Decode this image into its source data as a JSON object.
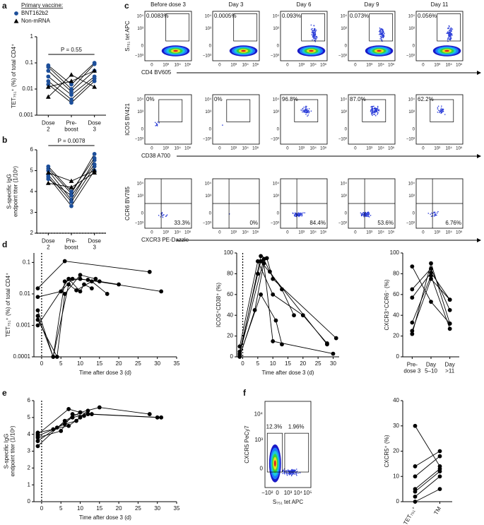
{
  "panels": [
    "a",
    "b",
    "c",
    "d",
    "e",
    "f"
  ],
  "legend": {
    "title": "Primary vaccine:",
    "groups": [
      {
        "name": "BNT162b2",
        "color": "#1d4f9a",
        "marker": "circle"
      },
      {
        "name": "Non-mRNA",
        "color": "#000000",
        "marker": "triangle"
      }
    ]
  },
  "flow_c": {
    "columns": [
      "Before dose 3",
      "Day 3",
      "Day 6",
      "Day 9",
      "Day 11"
    ],
    "rows": [
      {
        "ylabel": "S₇₅₁ tet APC",
        "xlabel": "CD4 BV605",
        "gates": [
          "0.0083%",
          "0.0005%",
          "0.093%",
          "0.073%",
          "0.056%"
        ]
      },
      {
        "ylabel": "ICOS BV421",
        "xlabel": "CD38 A700",
        "gates": [
          "0%",
          "0%",
          "96.8%",
          "87.0%",
          "62.2%"
        ]
      },
      {
        "ylabel": "CCR6 BV785",
        "xlabel": "CXCR3 PE-Dazzle",
        "gates": [
          "33.3%",
          "0%",
          "84.4%",
          "53.6%",
          "6.76%"
        ]
      }
    ],
    "yticks": [
      "10⁴",
      "10³",
      "0",
      "−10³"
    ],
    "xticks": [
      "0",
      "10³",
      "10⁴",
      "10⁵"
    ]
  },
  "flow_f": {
    "ylabel": "CXCR5 PeCy7",
    "xlabel": "S₇₅₁ tet APC",
    "gates": [
      "12.3%",
      "1.96%"
    ],
    "yticks": [
      "10⁴",
      "10³",
      "0"
    ],
    "xticks": [
      "−10²",
      "0",
      "10³",
      "10⁴",
      "10⁵"
    ]
  },
  "chart_data": [
    {
      "type": "line",
      "ylabel": "TET₇₅₁⁺ (%) of total CD4⁺",
      "log": true,
      "categories": [
        "Dose\n2",
        "Pre-\nboost",
        "Dose\n3"
      ],
      "ylim": [
        0.001,
        1
      ],
      "yticks": [
        0.001,
        0.01,
        0.1,
        1
      ],
      "annotation": "P = 0.55",
      "series": [
        {
          "group": 0,
          "values": [
            0.08,
            0.015,
            0.1
          ]
        },
        {
          "group": 0,
          "values": [
            0.07,
            0.01,
            0.09
          ]
        },
        {
          "group": 0,
          "values": [
            0.05,
            0.008,
            0.05
          ]
        },
        {
          "group": 0,
          "values": [
            0.03,
            0.006,
            0.03
          ]
        },
        {
          "group": 0,
          "values": [
            0.02,
            0.004,
            0.025
          ]
        },
        {
          "group": 0,
          "values": [
            0.015,
            0.003,
            0.02
          ]
        },
        {
          "group": 1,
          "values": [
            0.005,
            0.035,
            0.012
          ]
        },
        {
          "group": 1,
          "values": [
            0.012,
            0.02,
            0.05
          ]
        }
      ]
    },
    {
      "type": "line",
      "ylabel": "S-specific IgG\nendpoint titer (1/10ˣ)",
      "log": false,
      "categories": [
        "Dose\n2",
        "Pre-\nboost",
        "Dose\n3"
      ],
      "ylim": [
        2,
        6
      ],
      "yticks": [
        2,
        3,
        4,
        5,
        6
      ],
      "hline": 2,
      "annotation": "P = 0.0078",
      "series": [
        {
          "group": 0,
          "values": [
            5.1,
            3.9,
            5.8
          ]
        },
        {
          "group": 0,
          "values": [
            5.0,
            3.6,
            5.5
          ]
        },
        {
          "group": 0,
          "values": [
            4.8,
            3.5,
            5.2
          ]
        },
        {
          "group": 0,
          "values": [
            4.7,
            3.3,
            5.0
          ]
        },
        {
          "group": 0,
          "values": [
            5.2,
            4.0,
            5.6
          ]
        },
        {
          "group": 0,
          "values": [
            4.6,
            3.8,
            5.3
          ]
        },
        {
          "group": 1,
          "values": [
            4.9,
            4.5,
            5.0
          ]
        },
        {
          "group": 1,
          "values": [
            4.4,
            4.2,
            4.9
          ]
        }
      ]
    },
    {
      "type": "line",
      "ylabel": "TET₇₅₁⁺ (%) of total CD4⁺",
      "xlabel": "Time after dose 3 (d)",
      "log": true,
      "xlim": [
        -2,
        35
      ],
      "xticks": [
        0,
        5,
        10,
        15,
        20,
        25,
        30,
        35
      ],
      "ylim": [
        0.0001,
        0.2
      ],
      "yticks": [
        0.0001,
        0.001,
        0.01,
        0.1
      ],
      "vline": 0,
      "series": [
        {
          "x": [
            -1,
            6,
            28
          ],
          "values": [
            0.015,
            0.11,
            0.05
          ]
        },
        {
          "x": [
            -1,
            3,
            6,
            10,
            31
          ],
          "values": [
            0.003,
            0.0001,
            0.025,
            0.03,
            0.012
          ]
        },
        {
          "x": [
            -1,
            3,
            7,
            9,
            13,
            17
          ],
          "values": [
            0.002,
            0.0001,
            0.02,
            0.013,
            0.025,
            0.01
          ]
        },
        {
          "x": [
            -1,
            5,
            8,
            12,
            15,
            20
          ],
          "values": [
            0.008,
            0.012,
            0.03,
            0.028,
            0.025,
            0.02
          ]
        },
        {
          "x": [
            -1,
            4,
            6,
            10,
            14
          ],
          "values": [
            0.0015,
            0.0001,
            0.01,
            0.04,
            0.03
          ]
        },
        {
          "x": [
            -1,
            7,
            10,
            11,
            13
          ],
          "values": [
            0.001,
            0.03,
            0.012,
            0.02,
            0.015
          ]
        }
      ]
    },
    {
      "type": "line",
      "ylabel": "ICOS⁺CD38⁺ (%)",
      "xlabel": "Time after dose 3 (d)",
      "log": false,
      "xlim": [
        -2,
        32
      ],
      "xticks": [
        0,
        5,
        10,
        15,
        20,
        25,
        30
      ],
      "ylim": [
        0,
        100
      ],
      "yticks": [
        0,
        20,
        40,
        60,
        80,
        100
      ],
      "vline": 0,
      "series": [
        {
          "x": [
            -1,
            5,
            6,
            28
          ],
          "values": [
            5,
            80,
            92,
            12
          ]
        },
        {
          "x": [
            -1,
            6,
            8,
            10,
            31
          ],
          "values": [
            2,
            97,
            95,
            75,
            18
          ]
        },
        {
          "x": [
            -1,
            7,
            9,
            13,
            17
          ],
          "values": [
            3,
            94,
            82,
            65,
            40
          ]
        },
        {
          "x": [
            -1,
            5,
            10,
            20,
            28
          ],
          "values": [
            10,
            92,
            60,
            40,
            13
          ]
        },
        {
          "x": [
            -1,
            4,
            7,
            10,
            30
          ],
          "values": [
            0,
            45,
            90,
            15,
            3
          ]
        },
        {
          "x": [
            -1,
            6,
            11,
            13
          ],
          "values": [
            1,
            60,
            35,
            12
          ]
        }
      ]
    },
    {
      "type": "line",
      "ylabel": "CXCR3⁺CCR6⁻ (%)",
      "log": false,
      "categories": [
        "Pre-\ndose 3",
        "Day\n5–10",
        "Day\n>11"
      ],
      "ylim": [
        0,
        100
      ],
      "yticks": [
        0,
        20,
        40,
        60,
        80,
        100
      ],
      "series": [
        {
          "values": [
            87,
            53,
            32
          ]
        },
        {
          "values": [
            65,
            85,
            45
          ]
        },
        {
          "values": [
            57,
            81,
            55
          ]
        },
        {
          "values": [
            33,
            78,
            27
          ]
        },
        {
          "values": [
            22,
            90,
            32
          ]
        },
        {
          "values": [
            25,
            75,
            55
          ]
        }
      ]
    },
    {
      "type": "line",
      "ylabel": "S-specific IgG\nendpoint titer (1/10ˣ)",
      "xlabel": "Time after dose 3 (d)",
      "log": false,
      "xlim": [
        -2,
        35
      ],
      "xticks": [
        0,
        5,
        10,
        15,
        20,
        25,
        30,
        35
      ],
      "ylim": [
        0,
        6
      ],
      "yticks": [
        0,
        1,
        2,
        3,
        4,
        5,
        6
      ],
      "vline": 0,
      "series": [
        {
          "x": [
            -1,
            7,
            10,
            15,
            28
          ],
          "values": [
            4.0,
            5.5,
            5.3,
            5.6,
            5.2
          ]
        },
        {
          "x": [
            -1,
            4,
            8,
            12,
            30
          ],
          "values": [
            3.6,
            4.4,
            5.0,
            5.2,
            5.0
          ]
        },
        {
          "x": [
            -1,
            6,
            10,
            13,
            31
          ],
          "values": [
            3.3,
            4.8,
            5.3,
            5.2,
            5.0
          ]
        },
        {
          "x": [
            -1,
            5,
            8,
            11
          ],
          "values": [
            3.8,
            4.2,
            5.2,
            5.1
          ]
        },
        {
          "x": [
            -1,
            3,
            7,
            10
          ],
          "values": [
            4.1,
            4.3,
            4.5,
            5.0
          ]
        },
        {
          "x": [
            -1,
            6,
            9,
            12
          ],
          "values": [
            3.9,
            4.6,
            4.8,
            5.4
          ]
        }
      ]
    },
    {
      "type": "line",
      "ylabel": "CXCR5⁺ (%)",
      "log": false,
      "categories": [
        "TET₇₅₁⁺",
        "TM"
      ],
      "ylim": [
        0,
        40
      ],
      "yticks": [
        0,
        10,
        20,
        30,
        40
      ],
      "series": [
        {
          "values": [
            30,
            14
          ]
        },
        {
          "values": [
            14,
            20
          ]
        },
        {
          "values": [
            10,
            18
          ]
        },
        {
          "values": [
            5,
            13
          ]
        },
        {
          "values": [
            4,
            12
          ]
        },
        {
          "values": [
            2,
            10
          ]
        },
        {
          "values": [
            0,
            5
          ]
        }
      ]
    }
  ]
}
